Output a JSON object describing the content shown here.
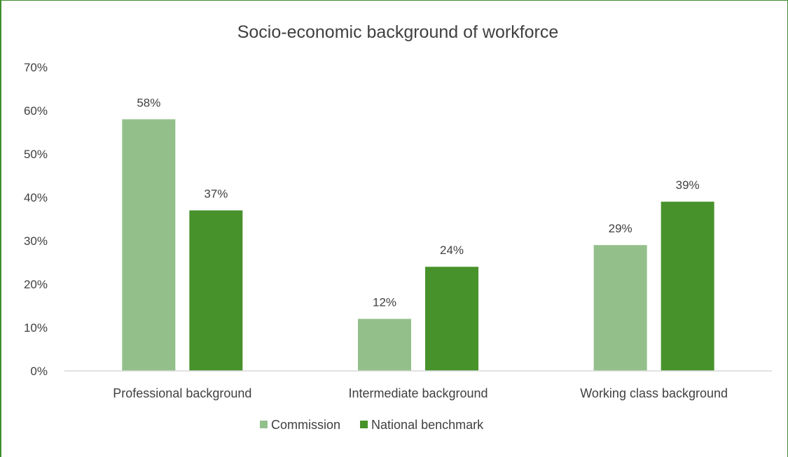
{
  "chart_data": {
    "type": "bar",
    "title": "Socio-economic background of workforce",
    "categories": [
      "Professional background",
      "Intermediate background",
      "Working class background"
    ],
    "series": [
      {
        "name": "Commission",
        "values": [
          58,
          12,
          29
        ],
        "labels": [
          "58%",
          "12%",
          "29%"
        ],
        "color": "#93c08a"
      },
      {
        "name": "National benchmark",
        "values": [
          37,
          24,
          39
        ],
        "labels": [
          "37%",
          "24%",
          "39%"
        ],
        "color": "#48922b"
      }
    ],
    "ylim": [
      0,
      70
    ],
    "yticks": [
      0,
      10,
      20,
      30,
      40,
      50,
      60,
      70
    ],
    "ytick_labels": [
      "0%",
      "10%",
      "20%",
      "30%",
      "40%",
      "50%",
      "60%",
      "70%"
    ],
    "legend_position": "bottom",
    "grid": false
  }
}
